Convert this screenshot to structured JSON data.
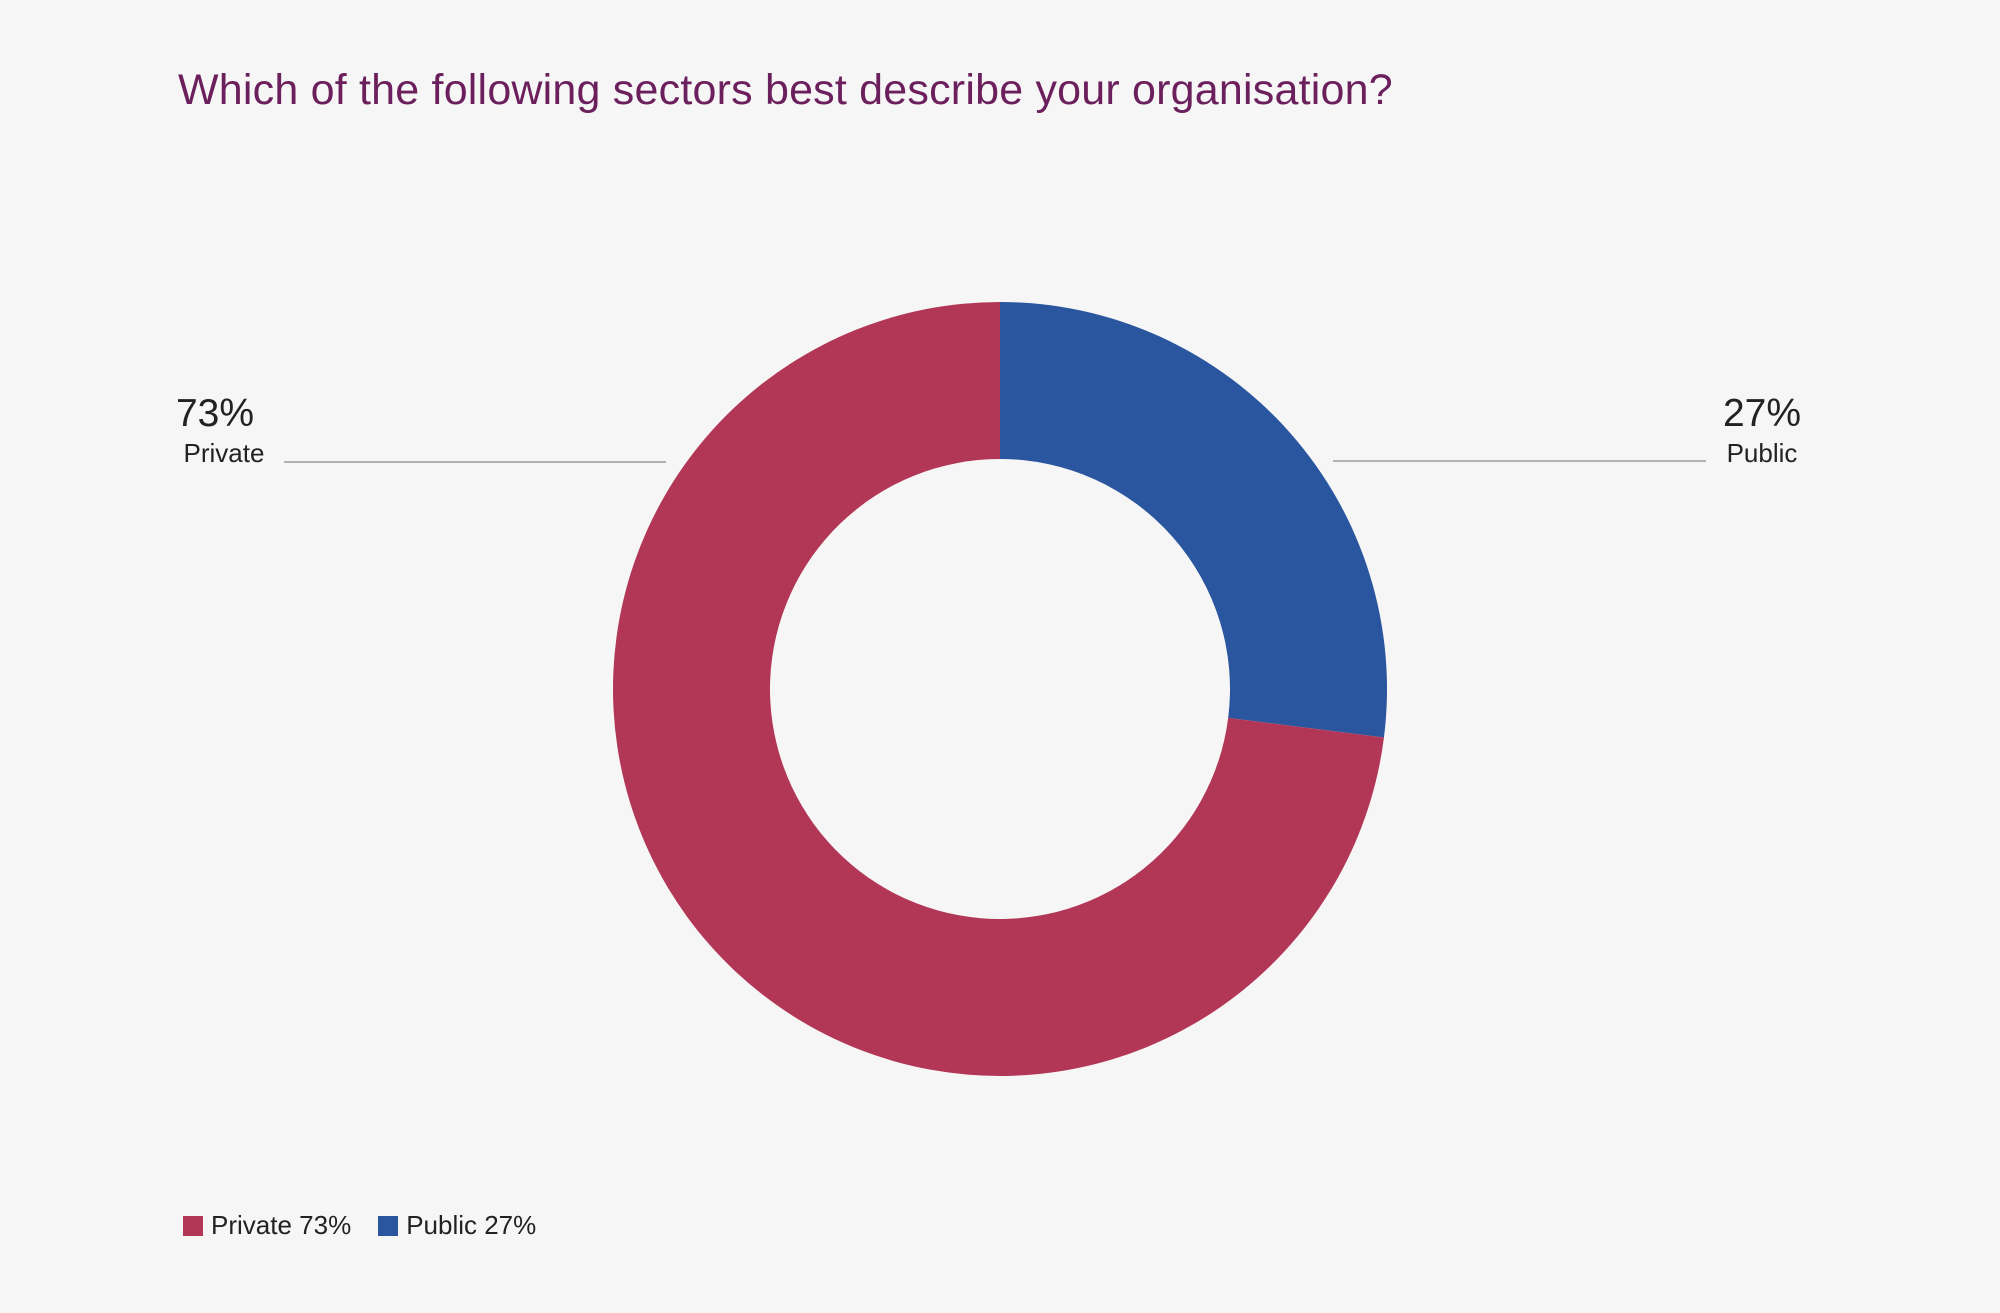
{
  "chart_data": {
    "type": "pie",
    "variant": "donut",
    "title": "Which of the following sectors best describe your organisation?",
    "unit": "%",
    "slices": [
      {
        "name": "Public",
        "value": 27,
        "value_label": "27%",
        "color": "#2a56a0",
        "legend_label": "Public 27%"
      },
      {
        "name": "Private",
        "value": 73,
        "value_label": "73%",
        "color": "#b23757",
        "legend_label": "Private 73%"
      }
    ],
    "legend_position": "bottom-left",
    "callouts": [
      {
        "value_label": "73%",
        "label": "Private",
        "side": "left"
      },
      {
        "value_label": "27%",
        "label": "Public",
        "side": "right"
      }
    ]
  }
}
